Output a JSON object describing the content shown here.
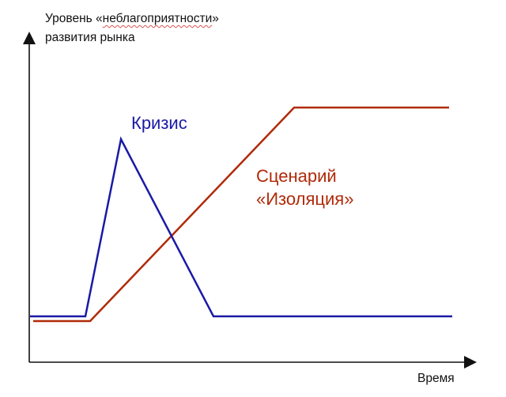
{
  "y_axis_label": {
    "prefix": "Уровень «",
    "underlined": "неблагоприятности",
    "suffix": "»",
    "line2": "развития рынка"
  },
  "x_axis_label": "Время",
  "curves": [
    {
      "name": "crisis",
      "label_lines": [
        "Кризис"
      ],
      "color": "#1a1aa6"
    },
    {
      "name": "isolation",
      "label_lines": [
        "Сценарий",
        "«Изоляция»"
      ],
      "color": "#b02a08"
    }
  ],
  "colors": {
    "axis": "#111111",
    "crisis": "#1a1aa6",
    "isolation": "#b02a08"
  }
}
